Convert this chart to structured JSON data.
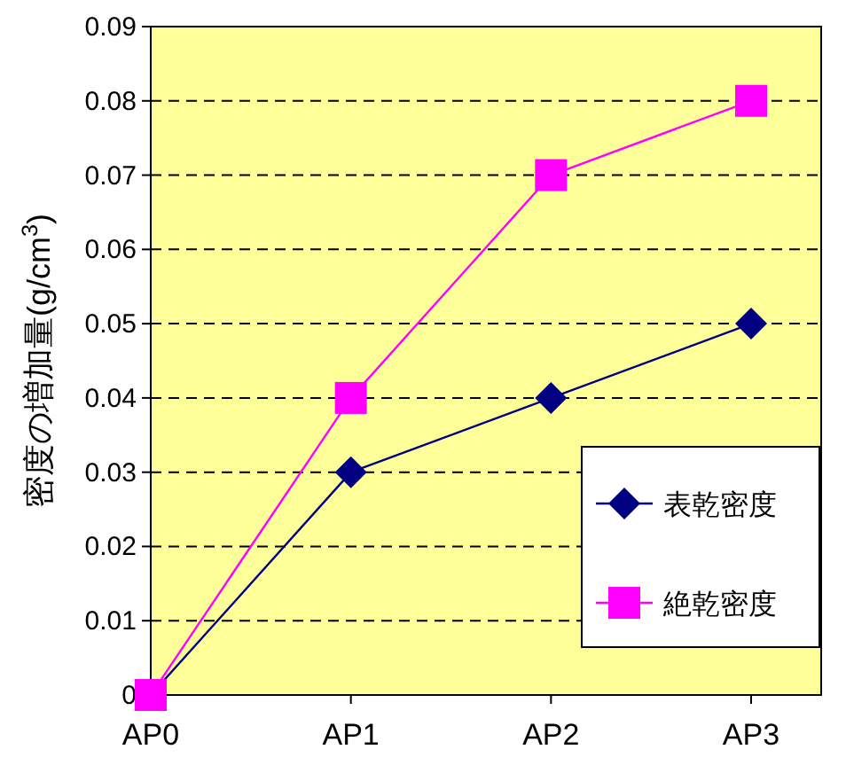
{
  "chart_data": {
    "type": "line",
    "ylabel": "密度の増加量(g/cm$^{3}$)",
    "categories": [
      "AP0",
      "AP1",
      "AP2",
      "AP3"
    ],
    "series": [
      {
        "name": "表乾密度",
        "color": "#000080",
        "values": [
          0,
          0.03,
          0.04,
          0.05
        ],
        "marker": "diamond"
      },
      {
        "name": "絶乾密度",
        "color": "#ff00ff",
        "values": [
          0,
          0.04,
          0.07,
          0.08
        ],
        "marker": "square"
      }
    ],
    "ylim": [
      0,
      0.09
    ],
    "yticks": [
      0,
      0.01,
      0.02,
      0.03,
      0.04,
      0.05,
      0.06,
      0.07,
      0.08,
      0.09
    ],
    "grid": "y",
    "legend": "bottom right",
    "line_style": "solid"
  }
}
